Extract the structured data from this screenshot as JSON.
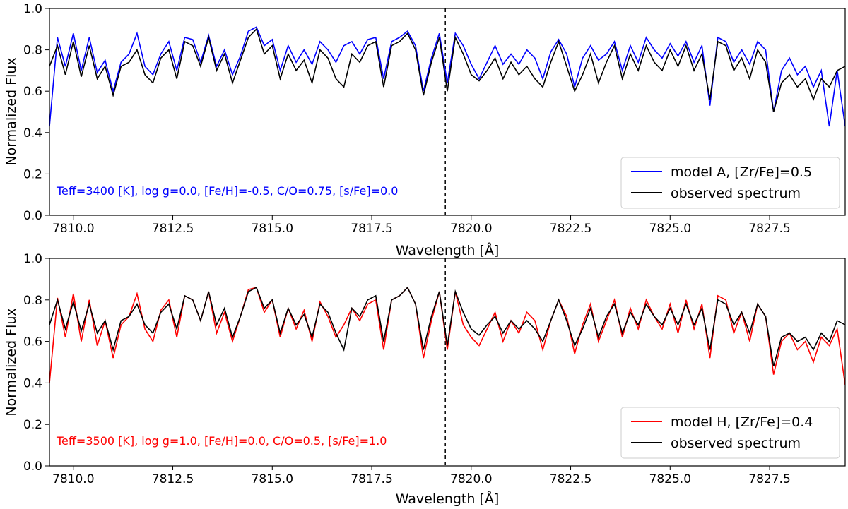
{
  "chart_data": [
    {
      "type": "line",
      "xlabel": "Wavelength [Å]",
      "ylabel": "Normalized Flux",
      "xlim": [
        7809.4,
        7829.4
      ],
      "ylim": [
        0.0,
        1.0
      ],
      "xticks": [
        7810.0,
        7812.5,
        7815.0,
        7817.5,
        7820.0,
        7822.5,
        7825.0,
        7827.5
      ],
      "xtick_labels": [
        "7810.0",
        "7812.5",
        "7815.0",
        "7817.5",
        "7820.0",
        "7822.5",
        "7825.0",
        "7827.5"
      ],
      "yticks": [
        0.0,
        0.2,
        0.4,
        0.6,
        0.8,
        1.0
      ],
      "ytick_labels": [
        "0.0",
        "0.2",
        "0.4",
        "0.6",
        "0.8",
        "1.0"
      ],
      "vline_x": 7819.35,
      "annotation": "Teff=3400 [K], log g=0.0, [Fe/H]=-0.5, C/O=0.75, [s/Fe]=0.0",
      "annotation_color": "#0000ff",
      "legend_position": "lower-right",
      "series": [
        {
          "name": "model A, [Zr/Fe]=0.5",
          "color": "#0000ff",
          "x": [
            7809.4,
            7809.6,
            7809.8,
            7810.0,
            7810.2,
            7810.4,
            7810.6,
            7810.8,
            7811.0,
            7811.2,
            7811.4,
            7811.6,
            7811.8,
            7812.0,
            7812.2,
            7812.4,
            7812.6,
            7812.8,
            7813.0,
            7813.2,
            7813.4,
            7813.6,
            7813.8,
            7814.0,
            7814.2,
            7814.4,
            7814.6,
            7814.8,
            7815.0,
            7815.2,
            7815.4,
            7815.6,
            7815.8,
            7816.0,
            7816.2,
            7816.4,
            7816.6,
            7816.8,
            7817.0,
            7817.2,
            7817.4,
            7817.6,
            7817.8,
            7818.0,
            7818.2,
            7818.4,
            7818.6,
            7818.8,
            7819.0,
            7819.2,
            7819.4,
            7819.6,
            7819.8,
            7820.0,
            7820.2,
            7820.4,
            7820.6,
            7820.8,
            7821.0,
            7821.2,
            7821.4,
            7821.6,
            7821.8,
            7822.0,
            7822.2,
            7822.4,
            7822.6,
            7822.8,
            7823.0,
            7823.2,
            7823.4,
            7823.6,
            7823.8,
            7824.0,
            7824.2,
            7824.4,
            7824.6,
            7824.8,
            7825.0,
            7825.2,
            7825.4,
            7825.6,
            7825.8,
            7826.0,
            7826.2,
            7826.4,
            7826.6,
            7826.8,
            7827.0,
            7827.2,
            7827.4,
            7827.6,
            7827.8,
            7828.0,
            7828.2,
            7828.4,
            7828.6,
            7828.8,
            7829.0,
            7829.2,
            7829.4
          ],
          "y": [
            0.43,
            0.86,
            0.72,
            0.88,
            0.7,
            0.86,
            0.69,
            0.75,
            0.6,
            0.74,
            0.78,
            0.88,
            0.72,
            0.68,
            0.78,
            0.84,
            0.7,
            0.86,
            0.85,
            0.74,
            0.87,
            0.72,
            0.8,
            0.68,
            0.77,
            0.89,
            0.91,
            0.82,
            0.85,
            0.7,
            0.82,
            0.74,
            0.8,
            0.73,
            0.84,
            0.8,
            0.74,
            0.82,
            0.84,
            0.78,
            0.85,
            0.86,
            0.66,
            0.84,
            0.86,
            0.89,
            0.82,
            0.6,
            0.76,
            0.88,
            0.64,
            0.88,
            0.82,
            0.73,
            0.66,
            0.74,
            0.82,
            0.73,
            0.78,
            0.73,
            0.8,
            0.76,
            0.66,
            0.79,
            0.85,
            0.78,
            0.62,
            0.76,
            0.82,
            0.75,
            0.78,
            0.84,
            0.7,
            0.82,
            0.74,
            0.86,
            0.8,
            0.76,
            0.83,
            0.77,
            0.84,
            0.74,
            0.82,
            0.53,
            0.86,
            0.84,
            0.74,
            0.8,
            0.73,
            0.84,
            0.8,
            0.5,
            0.7,
            0.76,
            0.68,
            0.72,
            0.62,
            0.7,
            0.43,
            0.7,
            0.43
          ]
        },
        {
          "name": "observed spectrum",
          "color": "#000000",
          "x": [
            7809.4,
            7809.6,
            7809.8,
            7810.0,
            7810.2,
            7810.4,
            7810.6,
            7810.8,
            7811.0,
            7811.2,
            7811.4,
            7811.6,
            7811.8,
            7812.0,
            7812.2,
            7812.4,
            7812.6,
            7812.8,
            7813.0,
            7813.2,
            7813.4,
            7813.6,
            7813.8,
            7814.0,
            7814.2,
            7814.4,
            7814.6,
            7814.8,
            7815.0,
            7815.2,
            7815.4,
            7815.6,
            7815.8,
            7816.0,
            7816.2,
            7816.4,
            7816.6,
            7816.8,
            7817.0,
            7817.2,
            7817.4,
            7817.6,
            7817.8,
            7818.0,
            7818.2,
            7818.4,
            7818.6,
            7818.8,
            7819.0,
            7819.2,
            7819.4,
            7819.6,
            7819.8,
            7820.0,
            7820.2,
            7820.4,
            7820.6,
            7820.8,
            7821.0,
            7821.2,
            7821.4,
            7821.6,
            7821.8,
            7822.0,
            7822.2,
            7822.4,
            7822.6,
            7822.8,
            7823.0,
            7823.2,
            7823.4,
            7823.6,
            7823.8,
            7824.0,
            7824.2,
            7824.4,
            7824.6,
            7824.8,
            7825.0,
            7825.2,
            7825.4,
            7825.6,
            7825.8,
            7826.0,
            7826.2,
            7826.4,
            7826.6,
            7826.8,
            7827.0,
            7827.2,
            7827.4,
            7827.6,
            7827.8,
            7828.0,
            7828.2,
            7828.4,
            7828.6,
            7828.8,
            7829.0,
            7829.2,
            7829.4
          ],
          "y": [
            0.72,
            0.82,
            0.68,
            0.84,
            0.67,
            0.82,
            0.66,
            0.72,
            0.58,
            0.72,
            0.74,
            0.8,
            0.68,
            0.64,
            0.76,
            0.8,
            0.66,
            0.84,
            0.82,
            0.72,
            0.86,
            0.7,
            0.78,
            0.64,
            0.75,
            0.86,
            0.9,
            0.78,
            0.82,
            0.66,
            0.78,
            0.7,
            0.75,
            0.64,
            0.8,
            0.76,
            0.66,
            0.62,
            0.78,
            0.74,
            0.82,
            0.84,
            0.62,
            0.82,
            0.84,
            0.88,
            0.8,
            0.58,
            0.74,
            0.86,
            0.6,
            0.86,
            0.78,
            0.68,
            0.65,
            0.7,
            0.76,
            0.66,
            0.74,
            0.68,
            0.72,
            0.66,
            0.62,
            0.74,
            0.84,
            0.72,
            0.6,
            0.68,
            0.78,
            0.64,
            0.74,
            0.82,
            0.66,
            0.78,
            0.7,
            0.82,
            0.74,
            0.7,
            0.8,
            0.72,
            0.82,
            0.7,
            0.78,
            0.56,
            0.84,
            0.82,
            0.7,
            0.76,
            0.66,
            0.8,
            0.74,
            0.5,
            0.64,
            0.68,
            0.62,
            0.66,
            0.56,
            0.66,
            0.62,
            0.7,
            0.72
          ]
        }
      ]
    },
    {
      "type": "line",
      "xlabel": "Wavelength [Å]",
      "ylabel": "Normalized Flux",
      "xlim": [
        7809.4,
        7829.4
      ],
      "ylim": [
        0.0,
        1.0
      ],
      "xticks": [
        7810.0,
        7812.5,
        7815.0,
        7817.5,
        7820.0,
        7822.5,
        7825.0,
        7827.5
      ],
      "xtick_labels": [
        "7810.0",
        "7812.5",
        "7815.0",
        "7817.5",
        "7820.0",
        "7822.5",
        "7825.0",
        "7827.5"
      ],
      "yticks": [
        0.0,
        0.2,
        0.4,
        0.6,
        0.8,
        1.0
      ],
      "ytick_labels": [
        "0.0",
        "0.2",
        "0.4",
        "0.6",
        "0.8",
        "1.0"
      ],
      "vline_x": 7819.35,
      "annotation": "Teff=3500 [K], log g=1.0, [Fe/H]=0.0, C/O=0.5, [s/Fe]=1.0",
      "annotation_color": "#ff0000",
      "legend_position": "lower-right",
      "series": [
        {
          "name": "model H, [Zr/Fe]=0.4",
          "color": "#ff0000",
          "x": [
            7809.4,
            7809.6,
            7809.8,
            7810.0,
            7810.2,
            7810.4,
            7810.6,
            7810.8,
            7811.0,
            7811.2,
            7811.4,
            7811.6,
            7811.8,
            7812.0,
            7812.2,
            7812.4,
            7812.6,
            7812.8,
            7813.0,
            7813.2,
            7813.4,
            7813.6,
            7813.8,
            7814.0,
            7814.2,
            7814.4,
            7814.6,
            7814.8,
            7815.0,
            7815.2,
            7815.4,
            7815.6,
            7815.8,
            7816.0,
            7816.2,
            7816.4,
            7816.6,
            7816.8,
            7817.0,
            7817.2,
            7817.4,
            7817.6,
            7817.8,
            7818.0,
            7818.2,
            7818.4,
            7818.6,
            7818.8,
            7819.0,
            7819.2,
            7819.4,
            7819.6,
            7819.8,
            7820.0,
            7820.2,
            7820.4,
            7820.6,
            7820.8,
            7821.0,
            7821.2,
            7821.4,
            7821.6,
            7821.8,
            7822.0,
            7822.2,
            7822.4,
            7822.6,
            7822.8,
            7823.0,
            7823.2,
            7823.4,
            7823.6,
            7823.8,
            7824.0,
            7824.2,
            7824.4,
            7824.6,
            7824.8,
            7825.0,
            7825.2,
            7825.4,
            7825.6,
            7825.8,
            7826.0,
            7826.2,
            7826.4,
            7826.6,
            7826.8,
            7827.0,
            7827.2,
            7827.4,
            7827.6,
            7827.8,
            7828.0,
            7828.2,
            7828.4,
            7828.6,
            7828.8,
            7829.0,
            7829.2,
            7829.4
          ],
          "y": [
            0.4,
            0.81,
            0.62,
            0.83,
            0.6,
            0.8,
            0.58,
            0.7,
            0.52,
            0.68,
            0.72,
            0.83,
            0.66,
            0.6,
            0.75,
            0.8,
            0.62,
            0.82,
            0.8,
            0.7,
            0.84,
            0.64,
            0.74,
            0.6,
            0.72,
            0.85,
            0.86,
            0.74,
            0.8,
            0.62,
            0.76,
            0.66,
            0.75,
            0.6,
            0.79,
            0.72,
            0.62,
            0.68,
            0.76,
            0.7,
            0.78,
            0.8,
            0.56,
            0.8,
            0.82,
            0.86,
            0.78,
            0.52,
            0.7,
            0.84,
            0.56,
            0.84,
            0.68,
            0.62,
            0.58,
            0.66,
            0.74,
            0.6,
            0.7,
            0.64,
            0.74,
            0.7,
            0.56,
            0.7,
            0.8,
            0.72,
            0.54,
            0.68,
            0.78,
            0.6,
            0.7,
            0.8,
            0.62,
            0.76,
            0.66,
            0.8,
            0.72,
            0.66,
            0.78,
            0.64,
            0.8,
            0.66,
            0.78,
            0.52,
            0.82,
            0.8,
            0.64,
            0.74,
            0.6,
            0.78,
            0.72,
            0.44,
            0.6,
            0.64,
            0.56,
            0.6,
            0.5,
            0.62,
            0.58,
            0.66,
            0.39
          ]
        },
        {
          "name": "observed spectrum",
          "color": "#000000",
          "x": [
            7809.4,
            7809.6,
            7809.8,
            7810.0,
            7810.2,
            7810.4,
            7810.6,
            7810.8,
            7811.0,
            7811.2,
            7811.4,
            7811.6,
            7811.8,
            7812.0,
            7812.2,
            7812.4,
            7812.6,
            7812.8,
            7813.0,
            7813.2,
            7813.4,
            7813.6,
            7813.8,
            7814.0,
            7814.2,
            7814.4,
            7814.6,
            7814.8,
            7815.0,
            7815.2,
            7815.4,
            7815.6,
            7815.8,
            7816.0,
            7816.2,
            7816.4,
            7816.6,
            7816.8,
            7817.0,
            7817.2,
            7817.4,
            7817.6,
            7817.8,
            7818.0,
            7818.2,
            7818.4,
            7818.6,
            7818.8,
            7819.0,
            7819.2,
            7819.4,
            7819.6,
            7819.8,
            7820.0,
            7820.2,
            7820.4,
            7820.6,
            7820.8,
            7821.0,
            7821.2,
            7821.4,
            7821.6,
            7821.8,
            7822.0,
            7822.2,
            7822.4,
            7822.6,
            7822.8,
            7823.0,
            7823.2,
            7823.4,
            7823.6,
            7823.8,
            7824.0,
            7824.2,
            7824.4,
            7824.6,
            7824.8,
            7825.0,
            7825.2,
            7825.4,
            7825.6,
            7825.8,
            7826.0,
            7826.2,
            7826.4,
            7826.6,
            7826.8,
            7827.0,
            7827.2,
            7827.4,
            7827.6,
            7827.8,
            7828.0,
            7828.2,
            7828.4,
            7828.6,
            7828.8,
            7829.0,
            7829.2,
            7829.4
          ],
          "y": [
            0.68,
            0.8,
            0.66,
            0.79,
            0.65,
            0.78,
            0.64,
            0.7,
            0.56,
            0.7,
            0.72,
            0.78,
            0.68,
            0.64,
            0.74,
            0.78,
            0.66,
            0.82,
            0.8,
            0.7,
            0.84,
            0.68,
            0.76,
            0.62,
            0.72,
            0.84,
            0.86,
            0.76,
            0.8,
            0.64,
            0.76,
            0.68,
            0.73,
            0.62,
            0.78,
            0.74,
            0.64,
            0.56,
            0.76,
            0.72,
            0.8,
            0.82,
            0.6,
            0.8,
            0.82,
            0.86,
            0.78,
            0.56,
            0.72,
            0.84,
            0.58,
            0.84,
            0.74,
            0.66,
            0.63,
            0.68,
            0.72,
            0.64,
            0.7,
            0.66,
            0.7,
            0.66,
            0.6,
            0.7,
            0.8,
            0.7,
            0.58,
            0.66,
            0.76,
            0.62,
            0.72,
            0.78,
            0.64,
            0.74,
            0.68,
            0.78,
            0.72,
            0.68,
            0.76,
            0.68,
            0.78,
            0.68,
            0.76,
            0.56,
            0.8,
            0.78,
            0.68,
            0.74,
            0.64,
            0.78,
            0.72,
            0.48,
            0.62,
            0.64,
            0.6,
            0.62,
            0.56,
            0.64,
            0.6,
            0.7,
            0.68
          ]
        }
      ]
    }
  ]
}
